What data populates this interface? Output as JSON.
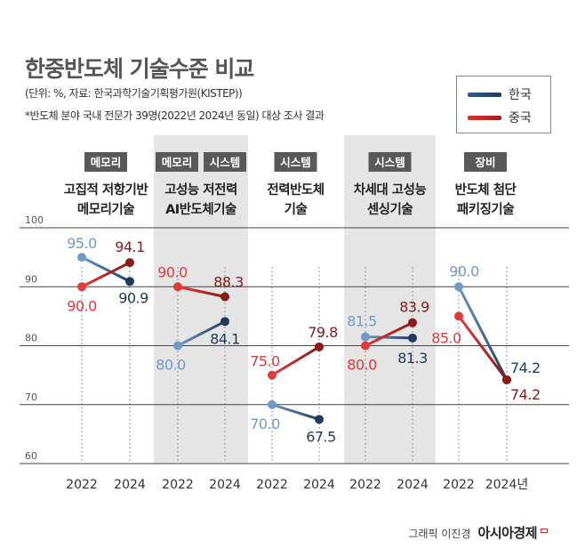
{
  "chart_data": {
    "type": "line",
    "title": "한중반도체 기술수준 비교",
    "notes": [
      "(단위: %, 자료: 한국과학기술기획평가원(KISTEP))",
      "*반도체 분야 국내 전문가 39명(2022년  2024년 동일) 대상 조사 결과"
    ],
    "ylim": [
      60,
      100
    ],
    "y_ticks": [
      "100",
      "90",
      "80",
      "70",
      "60"
    ],
    "legend": [
      {
        "name": "한국",
        "color": "#2e5b85"
      },
      {
        "name": "중국",
        "color": "#c8262a"
      }
    ],
    "categories": [
      {
        "tags": [
          "메모리"
        ],
        "name": "고집적 저항기반 메모리기술",
        "shaded": false,
        "x": [
          "2022",
          "2024"
        ],
        "korea": [
          95.0,
          90.9
        ],
        "china": [
          90.0,
          94.1
        ],
        "korea_labels": [
          "95.0",
          "90.9"
        ],
        "china_labels": [
          "90.0",
          "94.1"
        ]
      },
      {
        "tags": [
          "메모리",
          "시스템"
        ],
        "name": "고성능 저전력 AI반도체기술",
        "shaded": true,
        "x": [
          "2022",
          "2024"
        ],
        "korea": [
          80.0,
          84.1
        ],
        "china": [
          90.0,
          88.3
        ],
        "korea_labels": [
          "80.0",
          "84.1"
        ],
        "china_labels": [
          "90.0",
          "88.3"
        ]
      },
      {
        "tags": [
          "시스템"
        ],
        "name": "전력반도체 기술",
        "shaded": false,
        "x": [
          "2022",
          "2024"
        ],
        "korea": [
          70.0,
          67.5
        ],
        "china": [
          75.0,
          79.8
        ],
        "korea_labels": [
          "70.0",
          "67.5"
        ],
        "china_labels": [
          "75.0",
          "79.8"
        ]
      },
      {
        "tags": [
          "시스템"
        ],
        "name": "차세대 고성능 센싱기술",
        "shaded": true,
        "x": [
          "2022",
          "2024"
        ],
        "korea": [
          81.5,
          81.3
        ],
        "china": [
          80.0,
          83.9
        ],
        "korea_labels": [
          "81.5",
          "81.3"
        ],
        "china_labels": [
          "80.0",
          "83.9"
        ]
      },
      {
        "tags": [
          "장비"
        ],
        "name": "반도체 첨단 패키징기술",
        "shaded": false,
        "x": [
          "2022",
          "2024년"
        ],
        "korea": [
          90.0,
          74.2
        ],
        "china": [
          85.0,
          74.2
        ],
        "korea_labels": [
          "90.0",
          "74.2"
        ],
        "china_labels": [
          "85.0",
          "74.2"
        ]
      }
    ],
    "grid": true,
    "legend_position": "top-right",
    "colors": {
      "korea_light": "#6f9bc4",
      "korea_dark": "#1f3b5c",
      "china_light": "#e03a3a",
      "china_dark": "#8b1a1a",
      "shade": "#e5e5e5",
      "tag_bg": "#595959"
    }
  },
  "credit": {
    "byline": "그래픽 이진경",
    "logo": "아시아경제"
  }
}
